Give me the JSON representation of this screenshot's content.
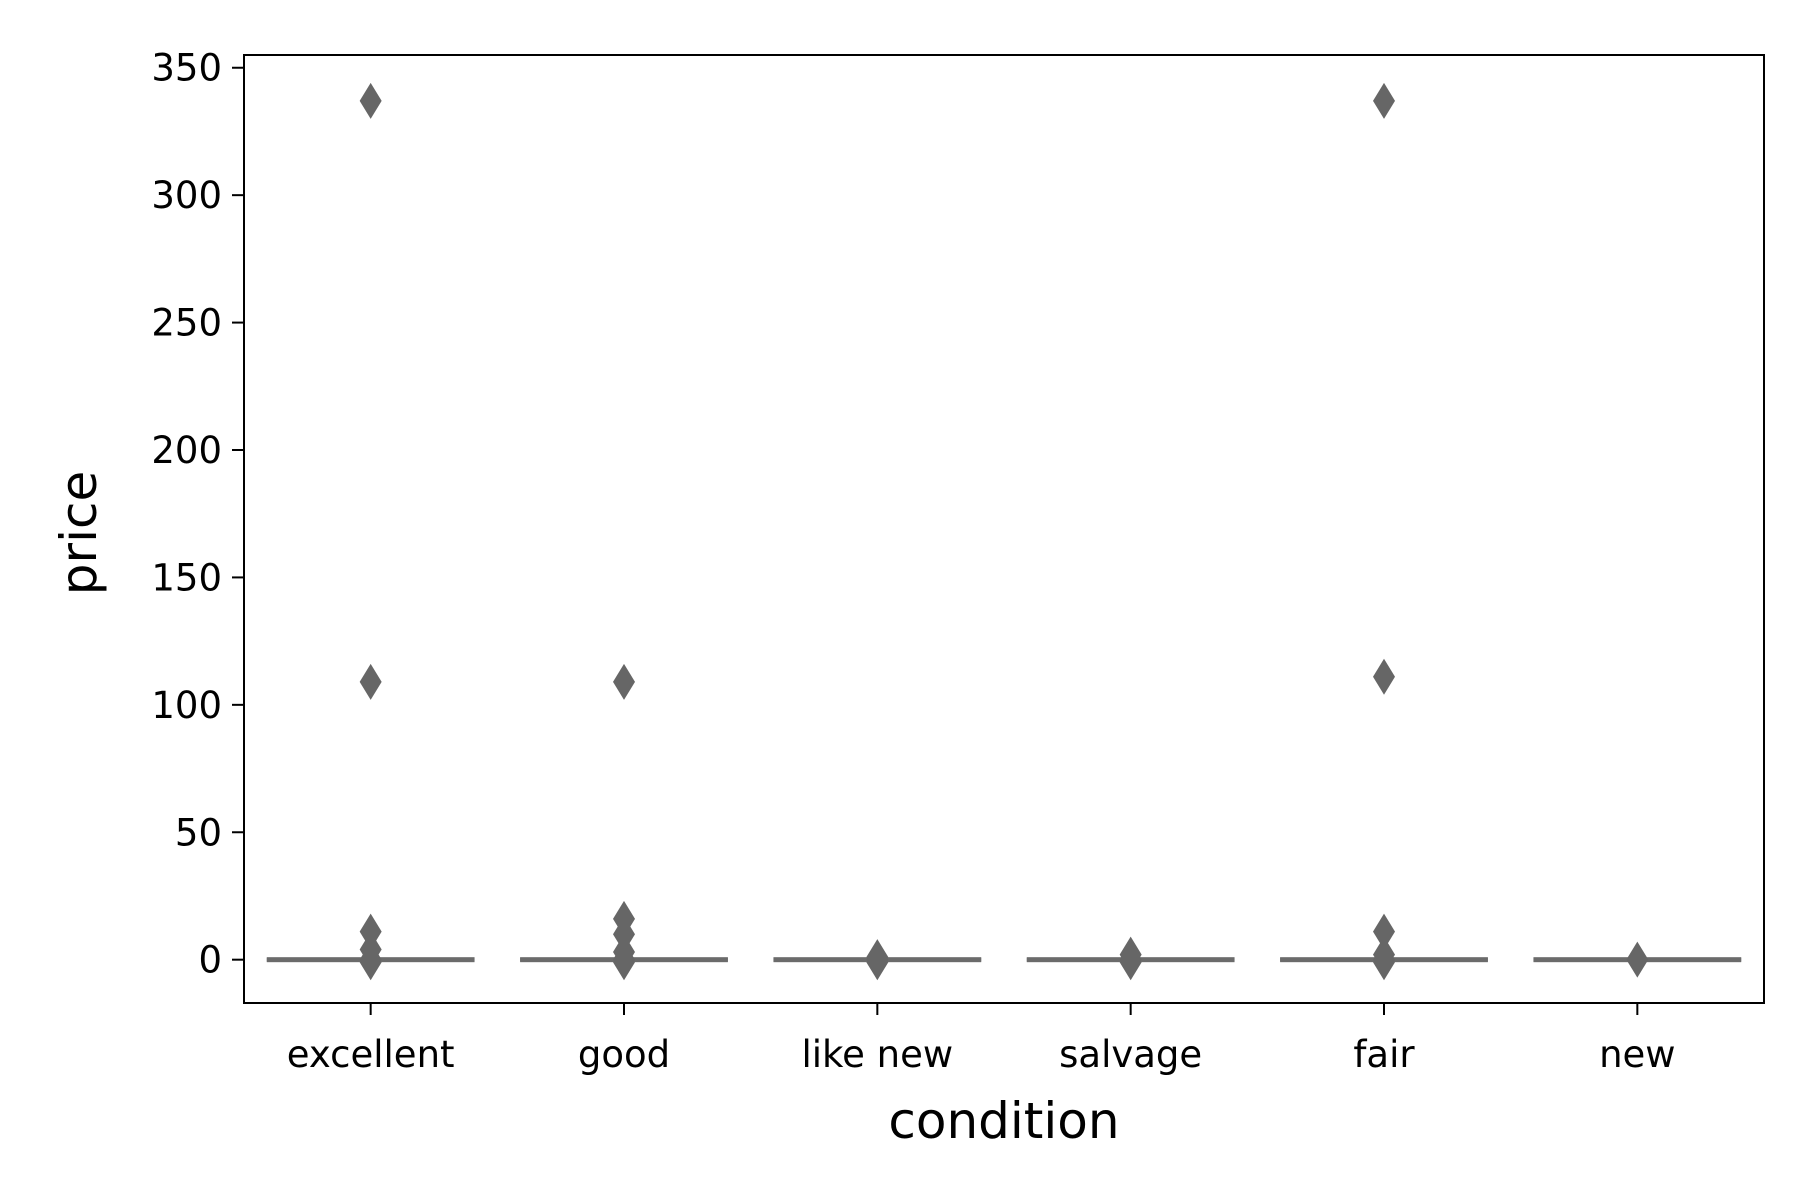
{
  "chart_data": {
    "type": "box",
    "xlabel": "condition",
    "ylabel": "price",
    "ylim": [
      -17,
      355
    ],
    "yticks": [
      0,
      50,
      100,
      150,
      200,
      250,
      300,
      350
    ],
    "grid": false,
    "legend": "none",
    "categories": [
      "excellent",
      "good",
      "like new",
      "salvage",
      "fair",
      "new"
    ],
    "boxes": [
      {
        "category": "excellent",
        "q1": 0,
        "median": 0,
        "q3": 0,
        "outliers": [
          337,
          109,
          11,
          4,
          0,
          -1
        ]
      },
      {
        "category": "good",
        "q1": 0,
        "median": 0,
        "q3": 0,
        "outliers": [
          109,
          16,
          10,
          3,
          0,
          -1
        ]
      },
      {
        "category": "like new",
        "q1": 0,
        "median": 0,
        "q3": 0,
        "outliers": [
          1,
          0,
          -1
        ]
      },
      {
        "category": "salvage",
        "q1": 0,
        "median": 0,
        "q3": 0,
        "outliers": [
          2,
          0,
          -1
        ]
      },
      {
        "category": "fair",
        "q1": 0,
        "median": 0,
        "q3": 0,
        "outliers": [
          337,
          111,
          11,
          2,
          0,
          -1
        ]
      },
      {
        "category": "new",
        "q1": 0,
        "median": 0,
        "q3": 0,
        "outliers": [
          0
        ]
      }
    ],
    "colors": {
      "box": "#6b6b6b",
      "outlier": "#666666",
      "axis": "#000000"
    }
  }
}
